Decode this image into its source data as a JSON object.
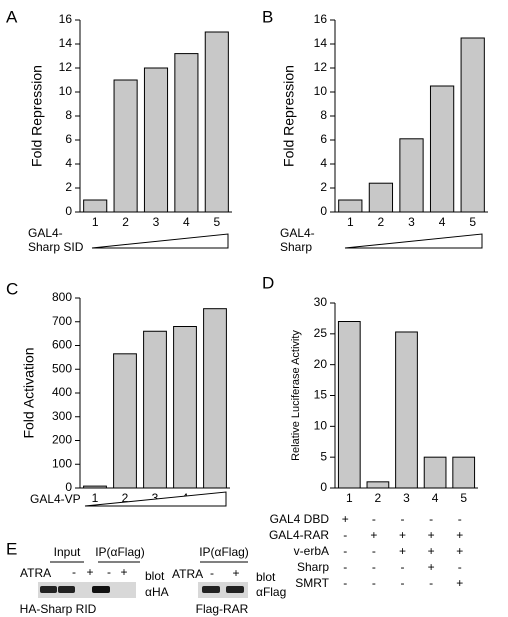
{
  "chart_data": [
    {
      "type": "bar",
      "panel": "A",
      "y_label": "Fold Repression",
      "categories": [
        "1",
        "2",
        "3",
        "4",
        "5"
      ],
      "values": [
        1,
        11,
        12,
        13.2,
        15
      ],
      "color": "#c8c8c8",
      "ylim": [
        0,
        16
      ],
      "yticks": [
        0,
        2,
        4,
        6,
        8,
        10,
        12,
        14,
        16
      ],
      "x_label": [
        "GAL4-",
        "Sharp SID"
      ]
    },
    {
      "type": "bar",
      "panel": "B",
      "y_label": "Fold Repression",
      "categories": [
        "1",
        "2",
        "3",
        "4",
        "5"
      ],
      "values": [
        1,
        2.4,
        6.1,
        10.5,
        14.5
      ],
      "color": "#c8c8c8",
      "ylim": [
        0,
        16
      ],
      "yticks": [
        0,
        2,
        4,
        6,
        8,
        10,
        12,
        14,
        16
      ],
      "x_label": [
        "GAL4-",
        "Sharp"
      ]
    },
    {
      "type": "bar",
      "panel": "C",
      "y_label": "Fold Activation",
      "categories": [
        "1",
        "2",
        "3",
        "4",
        "5"
      ],
      "values": [
        8,
        565,
        660,
        680,
        755
      ],
      "color": "#c8c8c8",
      "ylim": [
        0,
        800
      ],
      "yticks": [
        0,
        100,
        200,
        300,
        400,
        500,
        600,
        700,
        800
      ],
      "x_label": [
        "GAL4-VP"
      ]
    },
    {
      "type": "bar",
      "panel": "D",
      "y_label": "Relative Luciferase Activity",
      "categories": [
        "1",
        "2",
        "3",
        "4",
        "5"
      ],
      "values": [
        27,
        1,
        25.3,
        5,
        5
      ],
      "color": "#c8c8c8",
      "ylim": [
        0,
        30
      ],
      "yticks": [
        0,
        5,
        10,
        15,
        20,
        25,
        30
      ],
      "table": {
        "rows": [
          {
            "label": "GAL4 DBD",
            "cells": [
              "+",
              "-",
              "-",
              "-",
              "-"
            ]
          },
          {
            "label": "GAL4-RAR",
            "cells": [
              "-",
              "+",
              "+",
              "+",
              "+"
            ]
          },
          {
            "label": "v-erbA",
            "cells": [
              "-",
              "-",
              "+",
              "+",
              "+"
            ]
          },
          {
            "label": "Sharp",
            "cells": [
              "-",
              "-",
              "-",
              "+",
              "-"
            ]
          },
          {
            "label": "SMRT",
            "cells": [
              "-",
              "-",
              "-",
              "-",
              "+"
            ]
          }
        ]
      }
    }
  ],
  "blot_panel": {
    "panel": "E",
    "left": {
      "groups": [
        "Input",
        "IP(αFlag)"
      ],
      "treatment": "ATRA",
      "signs": [
        "-",
        "+",
        "-",
        "+"
      ],
      "blot_label": "blot",
      "antibody": "αHA",
      "sample": "HA-Sharp RID"
    },
    "right": {
      "group": "IP(αFlag)",
      "treatment": "ATRA",
      "signs": [
        "-",
        "+"
      ],
      "blot_label": "blot",
      "antibody": "αFlag",
      "sample": "Flag-RAR"
    }
  }
}
